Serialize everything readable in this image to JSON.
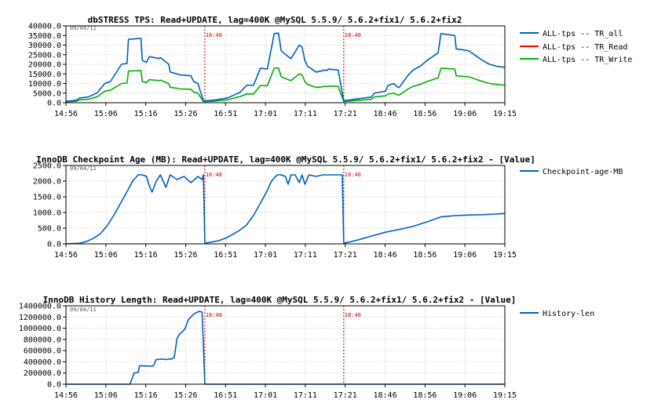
{
  "colors": {
    "tr_all": "#0060c0",
    "tr_read": "#ff0000",
    "tr_write": "#00b000",
    "grid": "#c8c8c8",
    "marker": "#cc0000"
  },
  "chart_data": [
    {
      "type": "line",
      "title": "dbSTRESS TPS: Read+UPDATE, lag=400K @MySQL 5.5.9/ 5.6.2+fix1/ 5.6.2+fix2",
      "date_label": "09/04/11",
      "x_tick_labels": [
        "14:56",
        "15:06",
        "15:16",
        "15:26",
        "16:51",
        "17:01",
        "17:11",
        "17:21",
        "18:46",
        "18:56",
        "19:06",
        "19:15"
      ],
      "ylim": [
        0,
        40000
      ],
      "y_tick_labels": [
        "0.0",
        "5000.0",
        "10000.0",
        "15000.0",
        "20000.0",
        "25000.0",
        "30000.0",
        "35000.0",
        "40000.0"
      ],
      "markers": [
        "16:48",
        "18:40"
      ],
      "legend_position": "right",
      "series": [
        {
          "name": "ALL-tps -- TR_all",
          "color_key": "tr_all",
          "x": [
            0,
            4,
            8,
            10,
            16,
            22,
            22.5,
            28,
            28.5,
            32,
            40,
            44,
            45,
            54,
            55,
            58,
            60,
            67,
            68,
            74,
            75,
            80,
            82,
            90,
            92,
            95,
            99,
            100,
            104,
            108,
            116,
            118,
            124,
            125,
            130,
            131,
            135,
            140,
            145,
            150,
            153,
            155,
            160,
            162,
            168,
            170,
            172,
            174,
            178,
            180,
            184,
            186,
            188,
            189,
            196,
            200,
            200,
            205,
            210,
            215,
            220,
            222,
            226,
            230,
            232,
            236,
            239,
            240,
            246,
            250,
            255,
            260,
            262,
            268,
            270,
            280,
            281,
            286,
            290,
            296,
            300,
            305,
            310,
            315,
            316
          ],
          "values": [
            800,
            1000,
            1500,
            2500,
            3000,
            5000,
            5200,
            10000,
            10200,
            11000,
            20000,
            20500,
            33000,
            33500,
            22000,
            21000,
            24000,
            23000,
            23500,
            20000,
            16000,
            15000,
            14500,
            14000,
            11000,
            10000,
            1000,
            1000,
            1200,
            1500,
            2500,
            3000,
            5000,
            5200,
            9000,
            9200,
            9000,
            18000,
            17500,
            36000,
            36200,
            27000,
            24000,
            23000,
            30000,
            29000,
            22000,
            19000,
            17000,
            16000,
            16500,
            17000,
            16800,
            17500,
            17000,
            1000,
            1000,
            1500,
            2000,
            2500,
            3000,
            5000,
            5500,
            6000,
            9000,
            10000,
            8000,
            8000,
            14000,
            17000,
            19000,
            22000,
            23000,
            26000,
            36000,
            35000,
            28000,
            27500,
            27000,
            24000,
            22000,
            20000,
            19000,
            18500,
            18500
          ]
        },
        {
          "name": "ALL-tps -- TR_Read",
          "color_key": "tr_read",
          "x": [],
          "values": []
        },
        {
          "name": "ALL-tps -- TR_Write",
          "color_key": "tr_write",
          "x": [
            0,
            4,
            8,
            10,
            16,
            22,
            22.5,
            28,
            28.5,
            32,
            40,
            44,
            45,
            54,
            55,
            58,
            60,
            67,
            68,
            74,
            75,
            80,
            82,
            90,
            92,
            95,
            99,
            100,
            104,
            108,
            116,
            118,
            124,
            125,
            130,
            131,
            135,
            140,
            145,
            150,
            153,
            155,
            160,
            162,
            168,
            170,
            172,
            174,
            178,
            180,
            184,
            186,
            188,
            189,
            196,
            200,
            200,
            205,
            210,
            215,
            220,
            222,
            226,
            230,
            232,
            236,
            239,
            240,
            246,
            250,
            255,
            260,
            262,
            268,
            270,
            280,
            281,
            286,
            290,
            296,
            300,
            305,
            310,
            315,
            316
          ],
          "values": [
            500,
            600,
            900,
            1500,
            1800,
            3000,
            3100,
            6000,
            6100,
            6500,
            10000,
            10200,
            16500,
            16700,
            11000,
            10500,
            12000,
            11500,
            11700,
            10000,
            8000,
            7500,
            7200,
            7000,
            5500,
            5000,
            600,
            600,
            700,
            900,
            1500,
            1800,
            3000,
            3100,
            4500,
            4600,
            4500,
            9000,
            8800,
            18000,
            18100,
            13500,
            12000,
            11500,
            15000,
            14500,
            11000,
            9500,
            8500,
            8000,
            8200,
            8500,
            8400,
            8700,
            8500,
            600,
            600,
            900,
            1200,
            1500,
            1800,
            3000,
            3300,
            3600,
            4500,
            5000,
            4000,
            4000,
            7000,
            8500,
            9500,
            11000,
            11500,
            13000,
            18000,
            17500,
            14000,
            13700,
            13500,
            12000,
            11000,
            10000,
            9500,
            9200,
            9200
          ]
        }
      ]
    },
    {
      "type": "line",
      "title": "InnoDB Checkpoint Age (MB): Read+UPDATE, lag=400K @MySQL 5.5.9/ 5.6.2+fix1/ 5.6.2+fix2 - [Value]",
      "date_label": "09/04/11",
      "x_tick_labels": [
        "14:56",
        "15:06",
        "15:16",
        "15:26",
        "16:51",
        "17:01",
        "17:11",
        "17:21",
        "18:46",
        "18:56",
        "19:06",
        "19:15"
      ],
      "ylim": [
        0,
        2500
      ],
      "y_tick_labels": [
        "0.0",
        "500.0",
        "1000.0",
        "1500.0",
        "2000.0",
        "2500.0"
      ],
      "markers": [
        "16:48",
        "18:40"
      ],
      "legend_position": "right",
      "series": [
        {
          "name": "Checkpoint-age-MB",
          "color_key": "tr_all",
          "x": [
            0,
            10,
            15,
            20,
            25,
            30,
            35,
            40,
            45,
            48,
            52,
            55,
            58,
            60,
            62,
            65,
            68,
            70,
            72,
            75,
            80,
            85,
            90,
            95,
            98,
            99,
            100,
            110,
            115,
            120,
            125,
            130,
            135,
            140,
            145,
            148,
            152,
            155,
            158,
            160,
            162,
            165,
            168,
            170,
            172,
            175,
            180,
            185,
            190,
            195,
            198,
            199,
            200,
            210,
            220,
            230,
            240,
            250,
            260,
            265,
            270,
            275,
            280,
            290,
            300,
            310,
            314,
            316
          ],
          "values": [
            0,
            20,
            80,
            180,
            330,
            600,
            950,
            1350,
            1750,
            2000,
            2200,
            2200,
            2150,
            1850,
            1650,
            2000,
            2200,
            2000,
            1800,
            2200,
            2050,
            2150,
            1950,
            2150,
            2050,
            2200,
            20,
            100,
            180,
            300,
            430,
            600,
            900,
            1300,
            1700,
            2000,
            2200,
            2200,
            2150,
            1900,
            2200,
            2200,
            1950,
            2200,
            1900,
            2200,
            2150,
            2200,
            2200,
            2200,
            2200,
            2200,
            20,
            120,
            250,
            370,
            460,
            560,
            700,
            780,
            860,
            880,
            900,
            920,
            930,
            950,
            960,
            970
          ]
        }
      ]
    },
    {
      "type": "line",
      "title": "InnoDB History Length: Read+UPDATE, lag=400K @MySQL 5.5.9/ 5.6.2+fix1/ 5.6.2+fix2 - [Value]",
      "date_label": "09/04/11",
      "x_tick_labels": [
        "14:56",
        "15:06",
        "15:16",
        "15:26",
        "16:51",
        "17:01",
        "17:11",
        "17:21",
        "18:46",
        "18:56",
        "19:06",
        "19:15"
      ],
      "ylim": [
        0,
        1400000
      ],
      "y_tick_labels": [
        "0.0",
        "200000.0",
        "400000.0",
        "600000.0",
        "800000.0",
        "1000000.0",
        "1200000.0",
        "1400000.0"
      ],
      "markers": [
        "16:48",
        "18:40"
      ],
      "legend_position": "right",
      "series": [
        {
          "name": "History-len",
          "color_key": "tr_all",
          "x": [
            0,
            40,
            46,
            48,
            49,
            52,
            53,
            62,
            63,
            65,
            70,
            72,
            74,
            76,
            78,
            80,
            82,
            84,
            86,
            88,
            90,
            92,
            94,
            96,
            98,
            99,
            100,
            200,
            316
          ],
          "values": [
            0,
            0,
            0,
            120000,
            200000,
            210000,
            330000,
            320000,
            330000,
            440000,
            450000,
            440000,
            450000,
            450000,
            480000,
            820000,
            900000,
            940000,
            1000000,
            1150000,
            1200000,
            1250000,
            1280000,
            1300000,
            1290000,
            700000,
            0,
            0,
            0
          ]
        }
      ]
    }
  ]
}
